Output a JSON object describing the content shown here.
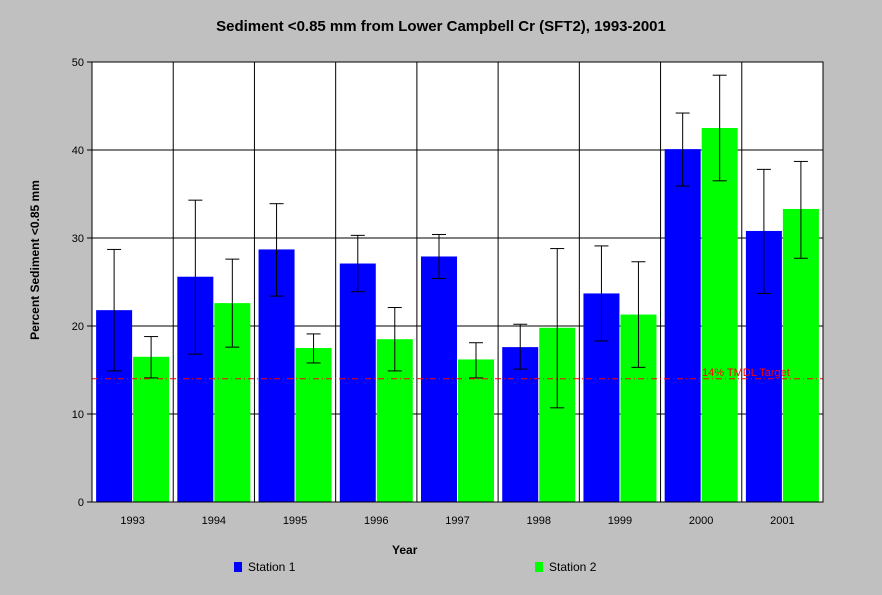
{
  "chart_data": {
    "type": "bar",
    "title": "Sediment <0.85 mm from Lower Campbell Cr (SFT2), 1993-2001",
    "xlabel": "Year",
    "ylabel": "Percent Sediment <0.85 mm",
    "ylim": [
      0,
      50
    ],
    "yticks": [
      0,
      10,
      20,
      30,
      40,
      50
    ],
    "grid": true,
    "legend_position": "bottom",
    "categories": [
      "1993",
      "1994",
      "1995",
      "1996",
      "1997",
      "1998",
      "1999",
      "2000",
      "2001"
    ],
    "series": [
      {
        "name": "Station 1",
        "color": "#0000ff",
        "values": [
          21.8,
          25.6,
          28.7,
          27.1,
          27.9,
          17.6,
          23.7,
          40.1,
          30.8
        ],
        "err_low": [
          14.9,
          16.8,
          23.4,
          23.9,
          25.4,
          15.1,
          18.3,
          35.9,
          23.7
        ],
        "err_high": [
          28.7,
          34.3,
          33.9,
          30.3,
          30.4,
          20.2,
          29.1,
          44.2,
          37.8
        ]
      },
      {
        "name": "Station 2",
        "color": "#00ff00",
        "values": [
          16.5,
          22.6,
          17.5,
          18.5,
          16.2,
          19.8,
          21.3,
          42.5,
          33.3
        ],
        "err_low": [
          14.1,
          17.6,
          15.8,
          14.9,
          14.1,
          10.7,
          15.3,
          36.5,
          27.7
        ],
        "err_high": [
          18.8,
          27.6,
          19.1,
          22.1,
          18.1,
          28.8,
          27.3,
          48.5,
          38.7
        ]
      }
    ],
    "reference_line": {
      "value": 14,
      "label": "14% TMDL Target",
      "color": "#ff0000"
    }
  }
}
